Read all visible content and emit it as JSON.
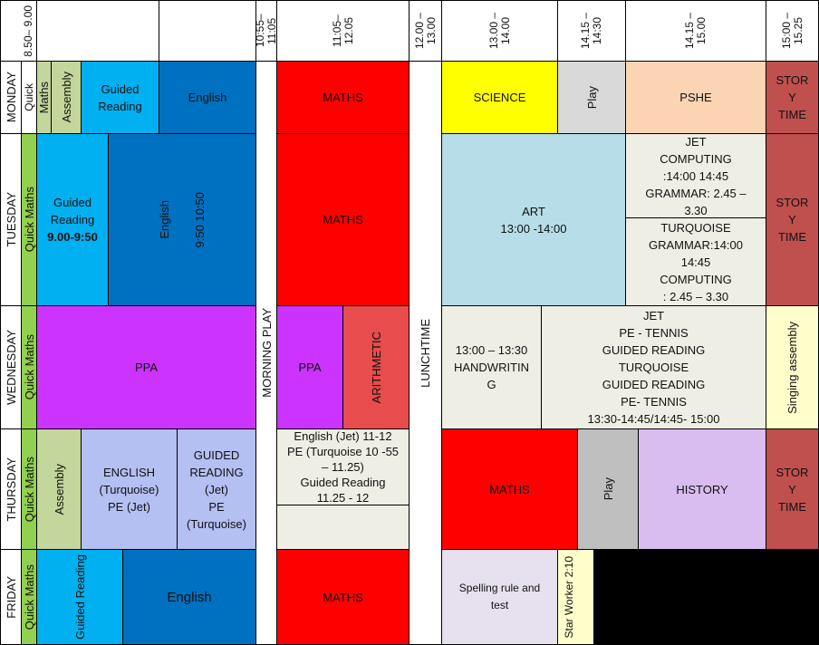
{
  "header": {
    "t0": "8.50– 9.00",
    "t1": "10:55– 11:05",
    "t2": "11:05– 12.05",
    "t3": "12.00 – 13.00",
    "t4": "13.00 – 14.00",
    "t5": "14.15 – 14:30",
    "t6": "14.15 – 15.00",
    "t7": "15:00 – 15.25"
  },
  "days": {
    "monday": "MONDAY",
    "tuesday": "TUESDAY",
    "wednesday": "WEDNESDAY",
    "thursday": "THURSDAY",
    "friday": "FRIDAY"
  },
  "quick_maths": "Quick Maths",
  "monday": {
    "maths": "Maths",
    "assembly": "Assembly",
    "guided_reading": "Guided Reading",
    "english": "English",
    "maths2": "MATHS",
    "science": "SCIENCE",
    "play": "Play",
    "pshe": "PSHE",
    "story": "STOR Y TIME"
  },
  "tuesday": {
    "gr_line1": "Guided Reading",
    "gr_time": "9.00-9:50",
    "english": "English",
    "english_time": "9:50 10:50",
    "maths": "MATHS",
    "art": "ART",
    "art_time": "13:00 -14:00",
    "jet_1": "JET",
    "jet_2": "COMPUTING",
    "jet_3": ":14:00 14:45",
    "jet_4": "GRAMMAR: 2.45 –",
    "jet_5": "3.30",
    "tq_1": "TURQUOISE",
    "tq_2": "GRAMMAR:14:00",
    "tq_3": "14:45",
    "tq_4": "COMPUTING",
    "tq_5": ": 2.45 – 3.30",
    "story": "STOR Y TIME"
  },
  "wednesday": {
    "ppa": "PPA",
    "morning_play": "MORNING PLAY",
    "ppa2": "PPA",
    "arithmetic": "ARITHMETIC",
    "lunchtime": "LUNCHTIME",
    "hw_1": "13:00 – 13:30",
    "hw_2": "HANDWRITIN",
    "hw_3": "G",
    "pe_1": "JET",
    "pe_2": "PE - TENNIS",
    "pe_3": "GUIDED READING",
    "pe_4": "TURQUOISE",
    "pe_5": "GUIDED READING",
    "pe_6": "PE- TENNIS",
    "pe_7": "13:30-14:45/14:45- 15:00",
    "singing": "Singing assembly"
  },
  "thursday": {
    "assembly": "Assembly",
    "eng_1": "ENGLISH",
    "eng_2": "(Turquoise)",
    "eng_3": "PE (Jet)",
    "gr_1": "GUIDED",
    "gr_2": "READING",
    "gr_3": "(Jet)",
    "gr_4": "PE",
    "gr_5": "(Turquoise)",
    "mid_1": "English (Jet) 11-12",
    "mid_2": "PE (Turquoise 10 -55",
    "mid_3": "– 11.25)",
    "mid_4": "Guided Reading",
    "mid_5": "11.25 - 12",
    "maths": "MATHS",
    "play": "Play",
    "history": "HISTORY",
    "story": "STOR Y TIME"
  },
  "friday": {
    "guided_reading": "Guided Reading",
    "english": "English",
    "maths": "MATHS",
    "spelling": "Spelling rule and test",
    "star": "Star Worker 2:10"
  }
}
